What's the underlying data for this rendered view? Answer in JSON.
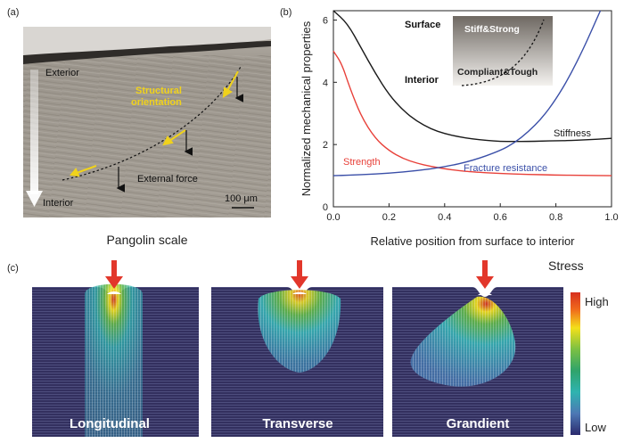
{
  "panel_a": {
    "label": "(a)",
    "exterior": "Exterior",
    "interior": "Interior",
    "structural_orientation": [
      "Structural",
      "orientation"
    ],
    "external_force": "External force",
    "scale_bar": "100 μm",
    "caption": "Pangolin scale"
  },
  "panel_b": {
    "label": "(b)",
    "inset": {
      "surface": "Surface",
      "interior": "Interior",
      "stiff_strong": "Stiff&Strong",
      "compliant_tough": "Compliant&Tough"
    },
    "series_labels": {
      "stiffness": "Stiffness",
      "strength": "Strength",
      "fracture": "Fracture resistance"
    }
  },
  "panel_c": {
    "label": "(c)",
    "stress_title": "Stress",
    "legend_high": "High",
    "legend_low": "Low",
    "panels": [
      "Longitudinal",
      "Transverse",
      "Grandient"
    ]
  },
  "colors": {
    "stiffness": "#1a1a1a",
    "strength": "#e8413a",
    "fracture": "#3a4fa8",
    "arrow_red": "#e2372b",
    "orientation_yellow": "#f0d21c",
    "field_bg": "#33305f"
  },
  "chart_data": {
    "type": "line",
    "xlabel": "Relative position from surface to interior",
    "ylabel": "Normalized mechanical properties",
    "xlim": [
      0,
      1.0
    ],
    "ylim": [
      0,
      6.3
    ],
    "xticks": [
      0.0,
      0.2,
      0.4,
      0.6,
      0.8,
      1.0
    ],
    "yticks": [
      0,
      2,
      4,
      6
    ],
    "series": [
      {
        "name": "Stiffness",
        "color": "#1a1a1a",
        "x": [
          0,
          0.05,
          0.1,
          0.15,
          0.2,
          0.25,
          0.3,
          0.35,
          0.4,
          0.45,
          0.5,
          0.55,
          0.6,
          0.65,
          0.7,
          0.75,
          0.8,
          0.85,
          0.9,
          0.95,
          1.0
        ],
        "y": [
          6.3,
          5.9,
          5.1,
          4.3,
          3.6,
          3.1,
          2.75,
          2.5,
          2.35,
          2.25,
          2.18,
          2.13,
          2.1,
          2.1,
          2.1,
          2.11,
          2.12,
          2.13,
          2.15,
          2.17,
          2.2
        ]
      },
      {
        "name": "Strength",
        "color": "#e8413a",
        "x": [
          0,
          0.03,
          0.06,
          0.1,
          0.15,
          0.2,
          0.25,
          0.3,
          0.35,
          0.4,
          0.45,
          0.5,
          0.6,
          0.7,
          0.8,
          0.9,
          1.0
        ],
        "y": [
          5.0,
          4.6,
          3.8,
          2.9,
          2.2,
          1.8,
          1.55,
          1.4,
          1.3,
          1.22,
          1.16,
          1.12,
          1.07,
          1.04,
          1.02,
          1.01,
          1.0
        ]
      },
      {
        "name": "Fracture resistance",
        "color": "#3a4fa8",
        "x": [
          0,
          0.1,
          0.2,
          0.3,
          0.4,
          0.5,
          0.6,
          0.65,
          0.7,
          0.75,
          0.8,
          0.85,
          0.9,
          0.93,
          0.96
        ],
        "y": [
          1.0,
          1.03,
          1.08,
          1.16,
          1.28,
          1.48,
          1.8,
          2.05,
          2.4,
          2.85,
          3.45,
          4.2,
          5.1,
          5.7,
          6.3
        ]
      }
    ]
  }
}
